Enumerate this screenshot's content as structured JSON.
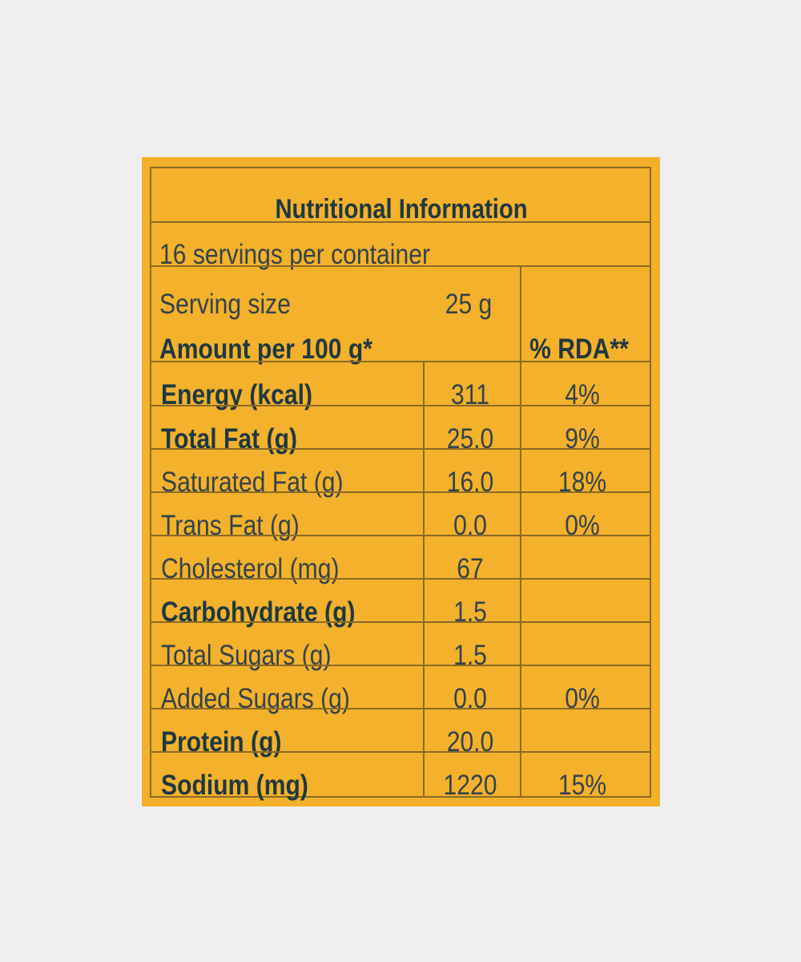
{
  "label": {
    "title": "Nutritional Information",
    "servings_per_container": "16 servings per container",
    "serving_size_label": "Serving size",
    "serving_size_value": "25 g",
    "amount_header": "Amount per 100 g*",
    "rda_header": "% RDA**",
    "colors": {
      "background": "#f4b12b",
      "text": "#1d3941",
      "rule": "#8a6a26"
    },
    "rows": [
      {
        "name": "Energy (kcal)",
        "amount": "311",
        "rda": "4%"
      },
      {
        "name": "Total Fat (g)",
        "amount": "25.0",
        "rda": "9%"
      },
      {
        "name": "Saturated Fat (g)",
        "amount": "16.0",
        "rda": "18%"
      },
      {
        "name": "Trans Fat (g)",
        "amount": "0.0",
        "rda": "0%"
      },
      {
        "name": "Cholesterol (mg)",
        "amount": "67",
        "rda": ""
      },
      {
        "name": "Carbohydrate (g)",
        "amount": "1.5",
        "rda": ""
      },
      {
        "name": "Total Sugars (g)",
        "amount": "1.5",
        "rda": ""
      },
      {
        "name": "Added Sugars (g)",
        "amount": "0.0",
        "rda": "0%"
      },
      {
        "name": "Protein (g)",
        "amount": "20.0",
        "rda": ""
      },
      {
        "name": "Sodium (mg)",
        "amount": "1220",
        "rda": "15%"
      }
    ]
  }
}
